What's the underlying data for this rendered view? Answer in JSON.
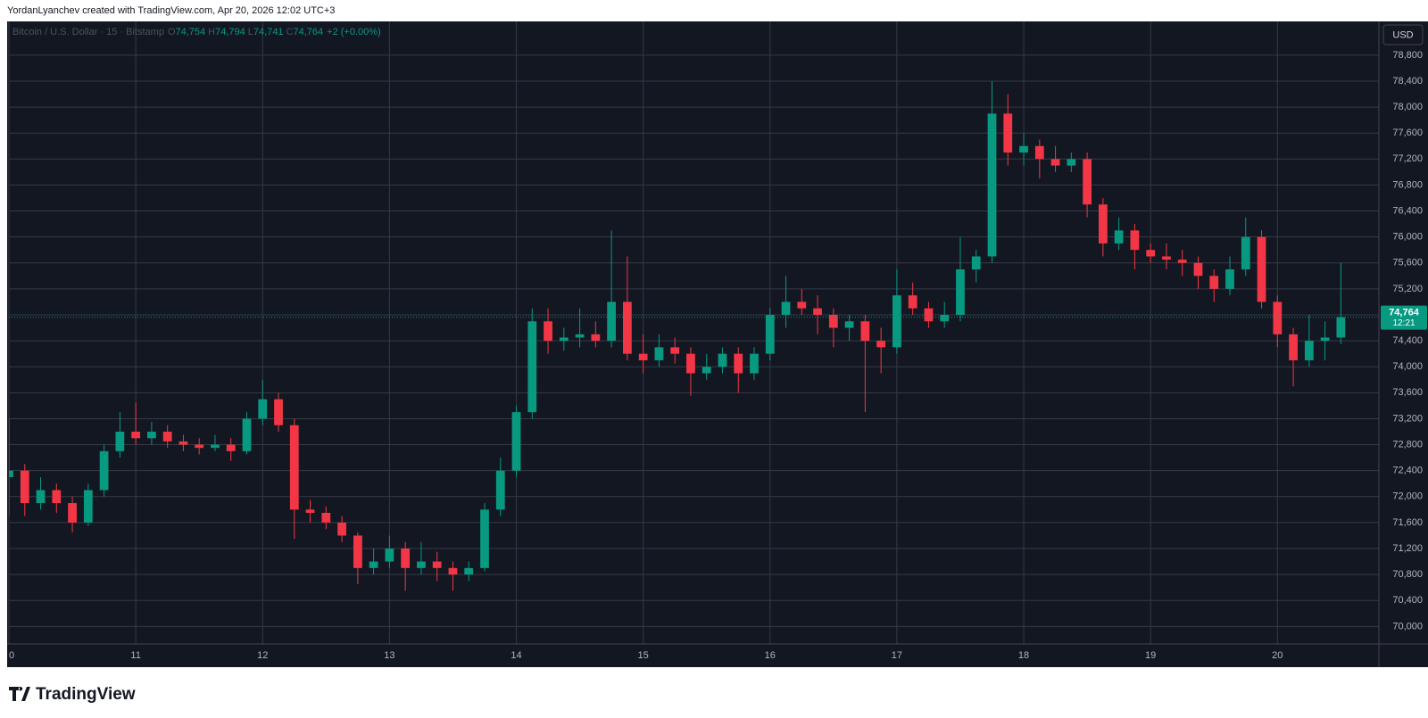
{
  "header": {
    "watermark": "YordanLyanchev created with TradingView.com, Apr 20, 2026 12:02 UTC+3",
    "brand": "TradingView"
  },
  "chart_data": {
    "type": "candlestick",
    "symbol": "Bitcoin / U.S. Dollar · 15 · Bitstamp",
    "legend": [
      {
        "key": "O",
        "value": "74,754"
      },
      {
        "key": "H",
        "value": "74,794"
      },
      {
        "key": "L",
        "value": "74,741"
      },
      {
        "key": "C",
        "value": "74,764"
      }
    ],
    "change": "+2 (+0.00%)",
    "currency": "USD",
    "up_color": "#089981",
    "down_color": "#f23645",
    "grid": true,
    "last_price": {
      "value": 74764,
      "label": "74,764"
    },
    "countdown": "12:21",
    "xlim": [
      10,
      20.8
    ],
    "xticks": [
      {
        "value": 10,
        "label": "0"
      },
      11,
      12,
      13,
      14,
      15,
      16,
      17,
      18,
      19,
      20
    ],
    "ylim": [
      69730,
      79320
    ],
    "yticks": [
      {
        "value": 70000,
        "label": "70,000"
      },
      {
        "value": 70400,
        "label": "70,400"
      },
      {
        "value": 70800,
        "label": "70,800"
      },
      {
        "value": 71200,
        "label": "71,200"
      },
      {
        "value": 71600,
        "label": "71,600"
      },
      {
        "value": 72000,
        "label": "72,000"
      },
      {
        "value": 72400,
        "label": "72,400"
      },
      {
        "value": 72800,
        "label": "72,800"
      },
      {
        "value": 73200,
        "label": "73,200"
      },
      {
        "value": 73600,
        "label": "73,600"
      },
      {
        "value": 74000,
        "label": "74,000"
      },
      {
        "value": 74400,
        "label": "74,400"
      },
      {
        "value": 74800,
        "label": "74,800"
      },
      {
        "value": 75200,
        "label": "75,200"
      },
      {
        "value": 75600,
        "label": "75,600"
      },
      {
        "value": 76000,
        "label": "76,000"
      },
      {
        "value": 76400,
        "label": "76,400"
      },
      {
        "value": 76800,
        "label": "76,800"
      },
      {
        "value": 77200,
        "label": "77,200"
      },
      {
        "value": 77600,
        "label": "77,600"
      },
      {
        "value": 78000,
        "label": "78,000"
      },
      {
        "value": 78400,
        "label": "78,400"
      },
      {
        "value": 78800,
        "label": "78,800"
      }
    ],
    "x": [
      10,
      10.125,
      10.25,
      10.375,
      10.5,
      10.625,
      10.75,
      10.875,
      11,
      11.125,
      11.25,
      11.375,
      11.5,
      11.625,
      11.75,
      11.875,
      12,
      12.125,
      12.25,
      12.375,
      12.5,
      12.625,
      12.75,
      12.875,
      13,
      13.125,
      13.25,
      13.375,
      13.5,
      13.625,
      13.75,
      13.875,
      14,
      14.125,
      14.25,
      14.375,
      14.5,
      14.625,
      14.75,
      14.875,
      15,
      15.125,
      15.25,
      15.375,
      15.5,
      15.625,
      15.75,
      15.875,
      16,
      16.125,
      16.25,
      16.375,
      16.5,
      16.625,
      16.75,
      16.875,
      17,
      17.125,
      17.25,
      17.375,
      17.5,
      17.625,
      17.75,
      17.875,
      18,
      18.125,
      18.25,
      18.375,
      18.5,
      18.625,
      18.75,
      18.875,
      19,
      19.125,
      19.25,
      19.375,
      19.5,
      19.625,
      19.75,
      19.875,
      20,
      20.125,
      20.25,
      20.375,
      20.5
    ],
    "open": [
      72300,
      72400,
      71900,
      72100,
      71900,
      71600,
      72100,
      72700,
      73000,
      72900,
      73000,
      72850,
      72800,
      72750,
      72800,
      72700,
      73200,
      73500,
      73100,
      71800,
      71750,
      71600,
      71400,
      70900,
      71000,
      71200,
      70900,
      71000,
      70900,
      70800,
      70900,
      71800,
      72400,
      73300,
      74700,
      74400,
      74450,
      74500,
      74400,
      75000,
      74200,
      74100,
      74300,
      74200,
      73900,
      74000,
      74200,
      73900,
      74200,
      74800,
      75000,
      74900,
      74800,
      74600,
      74700,
      74400,
      74300,
      75100,
      74900,
      74700,
      74800,
      75500,
      75700,
      77900,
      77300,
      77400,
      77200,
      77100,
      77200,
      76500,
      75900,
      76100,
      75800,
      75700,
      75650,
      75600,
      75400,
      75200,
      75500,
      76000,
      75000,
      74500,
      74100,
      74400,
      74450
    ],
    "high": [
      73200,
      72500,
      72300,
      72200,
      72000,
      72200,
      72800,
      73300,
      73450,
      73150,
      73100,
      72950,
      72900,
      72950,
      72900,
      73300,
      73800,
      73600,
      73200,
      71950,
      71850,
      71700,
      71450,
      71200,
      71400,
      71300,
      71300,
      71150,
      71000,
      71000,
      71900,
      72600,
      73400,
      74900,
      74900,
      74600,
      74900,
      74700,
      76100,
      75700,
      74500,
      74500,
      74450,
      74300,
      74200,
      74300,
      74300,
      74300,
      74900,
      75400,
      75200,
      75100,
      74900,
      74800,
      74800,
      74600,
      75500,
      75300,
      75000,
      75000,
      76000,
      75800,
      78400,
      78200,
      77600,
      77500,
      77400,
      77300,
      77300,
      76600,
      76300,
      76200,
      75900,
      75900,
      75800,
      75700,
      75500,
      75700,
      76300,
      76100,
      75100,
      74600,
      74800,
      74700,
      75600
    ],
    "low": [
      71700,
      71700,
      71800,
      71750,
      71450,
      71550,
      72000,
      72600,
      72800,
      72800,
      72750,
      72700,
      72650,
      72700,
      72550,
      72650,
      73100,
      73000,
      71350,
      71600,
      71500,
      71300,
      70650,
      70800,
      70900,
      70550,
      70800,
      70700,
      70550,
      70700,
      70850,
      71700,
      72300,
      73200,
      74200,
      74250,
      74300,
      74300,
      74300,
      74100,
      73900,
      74000,
      74050,
      73550,
      73800,
      73900,
      73600,
      73800,
      74100,
      74600,
      74800,
      74500,
      74300,
      74400,
      73300,
      73900,
      74200,
      74800,
      74600,
      74600,
      74700,
      75300,
      75600,
      77100,
      77100,
      76900,
      77000,
      77000,
      76300,
      75700,
      75800,
      75500,
      75600,
      75500,
      75400,
      75200,
      75000,
      75100,
      75400,
      74900,
      74300,
      73700,
      74000,
      74100,
      74350
    ],
    "close": [
      72400,
      71900,
      72100,
      71900,
      71600,
      72100,
      72700,
      73000,
      72900,
      73000,
      72850,
      72800,
      72750,
      72800,
      72700,
      73200,
      73500,
      73100,
      71800,
      71750,
      71600,
      71400,
      70900,
      71000,
      71200,
      70900,
      71000,
      70900,
      70800,
      70900,
      71800,
      72400,
      73300,
      74700,
      74400,
      74450,
      74500,
      74400,
      75000,
      74200,
      74100,
      74300,
      74200,
      73900,
      74000,
      74200,
      73900,
      74200,
      74800,
      75000,
      74900,
      74800,
      74600,
      74700,
      74400,
      74300,
      75100,
      74900,
      74700,
      74800,
      75500,
      75700,
      77900,
      77300,
      77400,
      77200,
      77100,
      77200,
      76500,
      75900,
      76100,
      75800,
      75700,
      75650,
      75600,
      75400,
      75200,
      75500,
      76000,
      75000,
      74500,
      74100,
      74400,
      74450,
      74764
    ]
  }
}
